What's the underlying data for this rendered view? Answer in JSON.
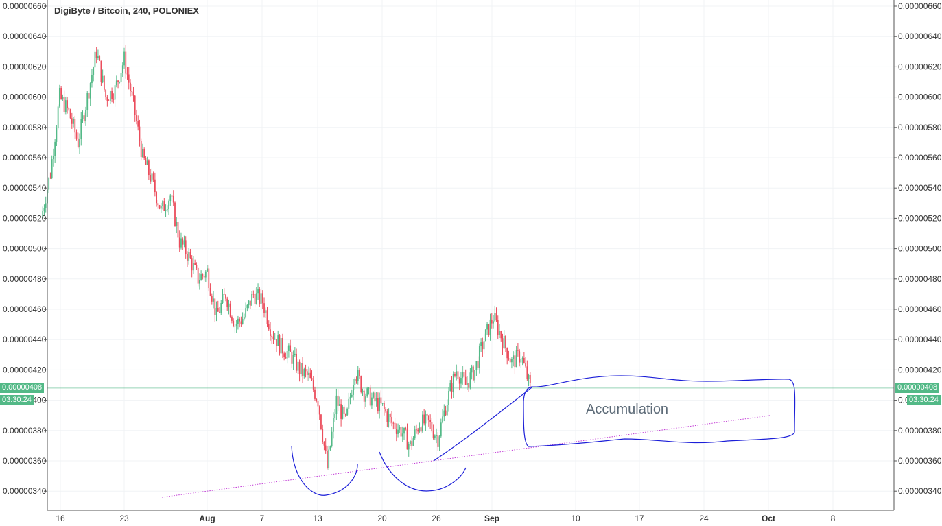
{
  "header": {
    "title": "DigiByte / Bitcoin, 240, POLONIEX"
  },
  "price_axis": {
    "labels": [
      "0.00000660",
      "0.00000640",
      "0.00000620",
      "0.00000600",
      "0.00000580",
      "0.00000560",
      "0.00000540",
      "0.00000520",
      "0.00000500",
      "0.00000480",
      "0.00000460",
      "0.00000440",
      "0.00000420",
      "0.00000400",
      "0.00000380",
      "0.00000360",
      "0.00000340"
    ]
  },
  "time_axis": {
    "labels": [
      {
        "text": "16",
        "bold": false
      },
      {
        "text": "23",
        "bold": false
      },
      {
        "text": "Aug",
        "bold": true
      },
      {
        "text": "7",
        "bold": false
      },
      {
        "text": "13",
        "bold": false
      },
      {
        "text": "20",
        "bold": false
      },
      {
        "text": "26",
        "bold": false
      },
      {
        "text": "Sep",
        "bold": true
      },
      {
        "text": "10",
        "bold": false
      },
      {
        "text": "17",
        "bold": false
      },
      {
        "text": "24",
        "bold": false
      },
      {
        "text": "Oct",
        "bold": true
      },
      {
        "text": "8",
        "bold": false
      }
    ]
  },
  "last_price": {
    "value": "0.00000408",
    "countdown": "03:30:24"
  },
  "annotations": {
    "accumulation_label": "Accumulation"
  },
  "colors": {
    "up": "#53b987",
    "down": "#eb4d5c",
    "grid": "#f0f3f5",
    "price_line": "#53b987",
    "drawing": "#1c1fd8",
    "trendline": "#c23ad6"
  },
  "chart_data": {
    "type": "candlestick",
    "symbol": "DigiByte / Bitcoin",
    "interval": "240",
    "exchange": "POLONIEX",
    "ylim": [
      3.34e-06,
      6.62e-06
    ],
    "y_ticks": [
      6.6e-06,
      6.4e-06,
      6.2e-06,
      6e-06,
      5.8e-06,
      5.6e-06,
      5.4e-06,
      5.2e-06,
      5e-06,
      4.8e-06,
      4.6e-06,
      4.4e-06,
      4.2e-06,
      4e-06,
      3.8e-06,
      3.6e-06,
      3.4e-06
    ],
    "last_price": 4.08e-06,
    "close_path": [
      [
        "Jul 14",
        5.2e-06
      ],
      [
        "Jul 15",
        5.5e-06
      ],
      [
        "Jul 16",
        6e-06
      ],
      [
        "Jul 17",
        5.9e-06
      ],
      [
        "Jul 18",
        5.7e-06
      ],
      [
        "Jul 19",
        6e-06
      ],
      [
        "Jul 20",
        6.3e-06
      ],
      [
        "Jul 21",
        6e-06
      ],
      [
        "Jul 22",
        6.05e-06
      ],
      [
        "Jul 23",
        6.25e-06
      ],
      [
        "Jul 24",
        5.95e-06
      ],
      [
        "Jul 25",
        5.6e-06
      ],
      [
        "Jul 26",
        5.45e-06
      ],
      [
        "Jul 27",
        5.25e-06
      ],
      [
        "Jul 28",
        5.35e-06
      ],
      [
        "Jul 29",
        5.05e-06
      ],
      [
        "Jul 30",
        4.95e-06
      ],
      [
        "Jul 31",
        4.8e-06
      ],
      [
        "Aug 1",
        4.85e-06
      ],
      [
        "Aug 2",
        4.55e-06
      ],
      [
        "Aug 3",
        4.7e-06
      ],
      [
        "Aug 4",
        4.5e-06
      ],
      [
        "Aug 5",
        4.55e-06
      ],
      [
        "Aug 6",
        4.7e-06
      ],
      [
        "Aug 7",
        4.65e-06
      ],
      [
        "Aug 8",
        4.45e-06
      ],
      [
        "Aug 9",
        4.35e-06
      ],
      [
        "Aug 10",
        4.3e-06
      ],
      [
        "Aug 11",
        4.2e-06
      ],
      [
        "Aug 12",
        4.15e-06
      ],
      [
        "Aug 13",
        4e-06
      ],
      [
        "Aug 14",
        3.55e-06
      ],
      [
        "Aug 15",
        4e-06
      ],
      [
        "Aug 16",
        3.85e-06
      ],
      [
        "Aug 17",
        4.2e-06
      ],
      [
        "Aug 18",
        4.05e-06
      ],
      [
        "Aug 19",
        4e-06
      ],
      [
        "Aug 20",
        3.95e-06
      ],
      [
        "Aug 21",
        3.85e-06
      ],
      [
        "Aug 22",
        3.8e-06
      ],
      [
        "Aug 23",
        3.7e-06
      ],
      [
        "Aug 24",
        3.85e-06
      ],
      [
        "Aug 25",
        3.85e-06
      ],
      [
        "Aug 26",
        3.75e-06
      ],
      [
        "Aug 27",
        4e-06
      ],
      [
        "Aug 28",
        4.2e-06
      ],
      [
        "Aug 29",
        4.1e-06
      ],
      [
        "Aug 30",
        4.2e-06
      ],
      [
        "Aug 31",
        4.4e-06
      ],
      [
        "Sep 1",
        4.55e-06
      ],
      [
        "Sep 2",
        4.4e-06
      ],
      [
        "Sep 3",
        4.25e-06
      ],
      [
        "Sep 4",
        4.3e-06
      ],
      [
        "Sep 5",
        4.08e-06
      ]
    ],
    "drawings": [
      {
        "type": "trendline",
        "from": [
          "Jul 27",
          3.36e-06
        ],
        "to": [
          "Oct 1",
          3.9e-06
        ]
      },
      {
        "type": "text",
        "text": "Accumulation"
      }
    ]
  }
}
